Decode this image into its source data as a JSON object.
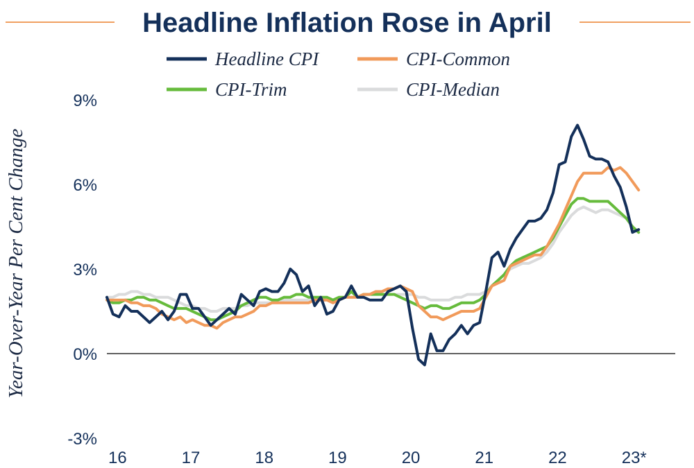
{
  "chart_data": {
    "type": "line",
    "title": "Headline Inflation Rose in April",
    "ylabel": "Year-Over-Year Per Cent Change",
    "xlabel": "",
    "x_tick_labels": [
      "16",
      "17",
      "18",
      "19",
      "20",
      "21",
      "22",
      "23*"
    ],
    "y_ticks": [
      {
        "value": 9,
        "label": "9%"
      },
      {
        "value": 6,
        "label": "6%"
      },
      {
        "value": 3,
        "label": "3%"
      },
      {
        "value": 0,
        "label": "0%"
      },
      {
        "value": -3,
        "label": "-3%"
      }
    ],
    "ylim": [
      -3,
      9
    ],
    "xlim": [
      2016.0,
      2023.75
    ],
    "x_start": "2016-01",
    "x_end": "2023-04",
    "grid": false,
    "zero_line": true,
    "legend_position": "top",
    "colors": {
      "title": "#14305a",
      "title_rule": "#f0a060",
      "axis_text": "#14305a"
    },
    "series": [
      {
        "name": "Headline CPI",
        "color": "#14305a",
        "values": [
          2.0,
          1.4,
          1.3,
          1.7,
          1.5,
          1.5,
          1.3,
          1.1,
          1.3,
          1.5,
          1.2,
          1.5,
          2.1,
          2.1,
          1.6,
          1.6,
          1.3,
          1.0,
          1.2,
          1.4,
          1.6,
          1.4,
          2.1,
          1.9,
          1.7,
          2.2,
          2.3,
          2.2,
          2.2,
          2.5,
          3.0,
          2.8,
          2.2,
          2.4,
          1.7,
          2.0,
          1.4,
          1.5,
          1.9,
          2.0,
          2.4,
          2.0,
          2.0,
          1.9,
          1.9,
          1.9,
          2.2,
          2.3,
          2.4,
          2.2,
          0.9,
          -0.2,
          -0.4,
          0.7,
          0.1,
          0.1,
          0.5,
          0.7,
          1.0,
          0.7,
          1.0,
          1.1,
          2.2,
          3.4,
          3.6,
          3.1,
          3.7,
          4.1,
          4.4,
          4.7,
          4.7,
          4.8,
          5.1,
          5.7,
          6.7,
          6.8,
          7.7,
          8.1,
          7.6,
          7.0,
          6.9,
          6.9,
          6.8,
          6.3,
          5.9,
          5.2,
          4.3,
          4.4
        ]
      },
      {
        "name": "CPI-Common",
        "color": "#f19a5a",
        "values": [
          1.9,
          1.9,
          1.9,
          1.9,
          1.8,
          1.8,
          1.7,
          1.7,
          1.6,
          1.4,
          1.3,
          1.2,
          1.3,
          1.1,
          1.2,
          1.1,
          1.0,
          1.0,
          0.9,
          1.1,
          1.2,
          1.3,
          1.3,
          1.4,
          1.5,
          1.7,
          1.7,
          1.8,
          1.8,
          1.8,
          1.8,
          1.8,
          1.8,
          1.8,
          1.9,
          1.9,
          1.9,
          1.8,
          1.9,
          2.0,
          2.0,
          2.0,
          2.1,
          2.1,
          2.2,
          2.2,
          2.3,
          2.3,
          2.4,
          2.3,
          2.2,
          1.7,
          1.5,
          1.3,
          1.3,
          1.2,
          1.3,
          1.4,
          1.5,
          1.5,
          1.5,
          1.6,
          2.0,
          2.4,
          2.5,
          2.6,
          3.1,
          3.2,
          3.3,
          3.4,
          3.5,
          3.5,
          3.8,
          4.2,
          4.6,
          5.1,
          5.6,
          6.1,
          6.4,
          6.4,
          6.4,
          6.4,
          6.6,
          6.5,
          6.6,
          6.4,
          6.1,
          5.8
        ]
      },
      {
        "name": "CPI-Trim",
        "color": "#66bb3c",
        "values": [
          1.9,
          1.8,
          1.8,
          1.9,
          1.9,
          2.0,
          2.0,
          1.9,
          1.9,
          1.8,
          1.7,
          1.6,
          1.6,
          1.6,
          1.5,
          1.4,
          1.3,
          1.2,
          1.2,
          1.3,
          1.4,
          1.5,
          1.7,
          1.8,
          1.9,
          2.0,
          2.0,
          1.9,
          1.9,
          2.0,
          2.0,
          2.1,
          2.1,
          2.0,
          2.0,
          2.0,
          2.0,
          1.9,
          2.0,
          2.0,
          2.2,
          2.0,
          2.1,
          2.1,
          2.1,
          2.1,
          2.1,
          2.1,
          2.0,
          1.9,
          1.8,
          1.7,
          1.6,
          1.7,
          1.7,
          1.6,
          1.6,
          1.7,
          1.8,
          1.8,
          1.8,
          1.9,
          2.1,
          2.4,
          2.6,
          2.8,
          3.1,
          3.3,
          3.4,
          3.5,
          3.6,
          3.7,
          3.8,
          4.1,
          4.5,
          4.9,
          5.3,
          5.5,
          5.5,
          5.4,
          5.4,
          5.4,
          5.4,
          5.2,
          5.0,
          4.8,
          4.5,
          4.3
        ]
      },
      {
        "name": "CPI-Median",
        "color": "#dadbdc",
        "values": [
          2.0,
          2.0,
          2.1,
          2.1,
          2.2,
          2.2,
          2.1,
          2.1,
          2.0,
          2.0,
          2.0,
          1.9,
          1.8,
          1.7,
          1.7,
          1.6,
          1.6,
          1.5,
          1.5,
          1.6,
          1.6,
          1.6,
          1.7,
          1.7,
          1.8,
          1.8,
          1.8,
          1.8,
          1.8,
          1.9,
          1.9,
          1.9,
          1.9,
          1.9,
          1.9,
          1.9,
          1.9,
          1.9,
          1.9,
          2.0,
          2.0,
          2.0,
          2.1,
          2.1,
          2.1,
          2.1,
          2.1,
          2.1,
          2.1,
          2.1,
          2.1,
          2.0,
          2.0,
          1.9,
          1.9,
          1.9,
          1.9,
          2.0,
          2.0,
          2.1,
          2.1,
          2.1,
          2.2,
          2.4,
          2.6,
          2.8,
          3.0,
          3.1,
          3.2,
          3.2,
          3.3,
          3.4,
          3.6,
          3.9,
          4.3,
          4.6,
          4.9,
          5.1,
          5.2,
          5.1,
          5.0,
          5.1,
          5.1,
          5.0,
          4.9,
          4.8,
          4.5,
          4.3
        ]
      }
    ]
  }
}
